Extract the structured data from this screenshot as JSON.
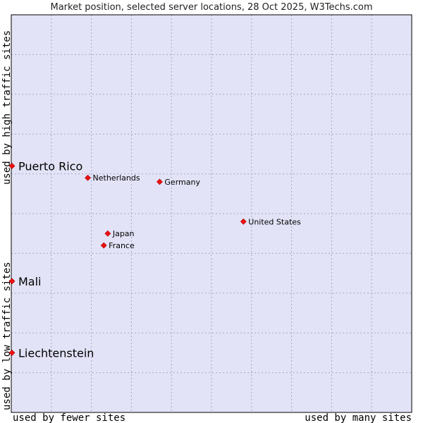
{
  "chart_data": {
    "type": "scatter",
    "title": "Market position, selected server locations, 28 Oct 2025, W3Techs.com",
    "xlabel_low": "used by fewer sites",
    "xlabel_high": "used by many sites",
    "ylabel_low": "used by low traffic sites",
    "ylabel_high": "used by high traffic sites",
    "xlim": [
      0,
      1
    ],
    "ylim": [
      0,
      1
    ],
    "grid": true,
    "points": [
      {
        "label": "Puerto Rico",
        "x": 0.0,
        "y": 0.62,
        "emphasis": true
      },
      {
        "label": "Netherlands",
        "x": 0.19,
        "y": 0.59,
        "emphasis": false
      },
      {
        "label": "Germany",
        "x": 0.37,
        "y": 0.58,
        "emphasis": false
      },
      {
        "label": "United States",
        "x": 0.58,
        "y": 0.48,
        "emphasis": false
      },
      {
        "label": "Japan",
        "x": 0.24,
        "y": 0.45,
        "emphasis": false
      },
      {
        "label": "France",
        "x": 0.23,
        "y": 0.42,
        "emphasis": false
      },
      {
        "label": "Mali",
        "x": 0.0,
        "y": 0.33,
        "emphasis": true
      },
      {
        "label": "Liechtenstein",
        "x": 0.0,
        "y": 0.15,
        "emphasis": true
      }
    ]
  },
  "colors": {
    "plot_bg": "#e3e3f7",
    "grid": "#a6a6c6",
    "marker": "#ee1111",
    "border": "#000000"
  }
}
